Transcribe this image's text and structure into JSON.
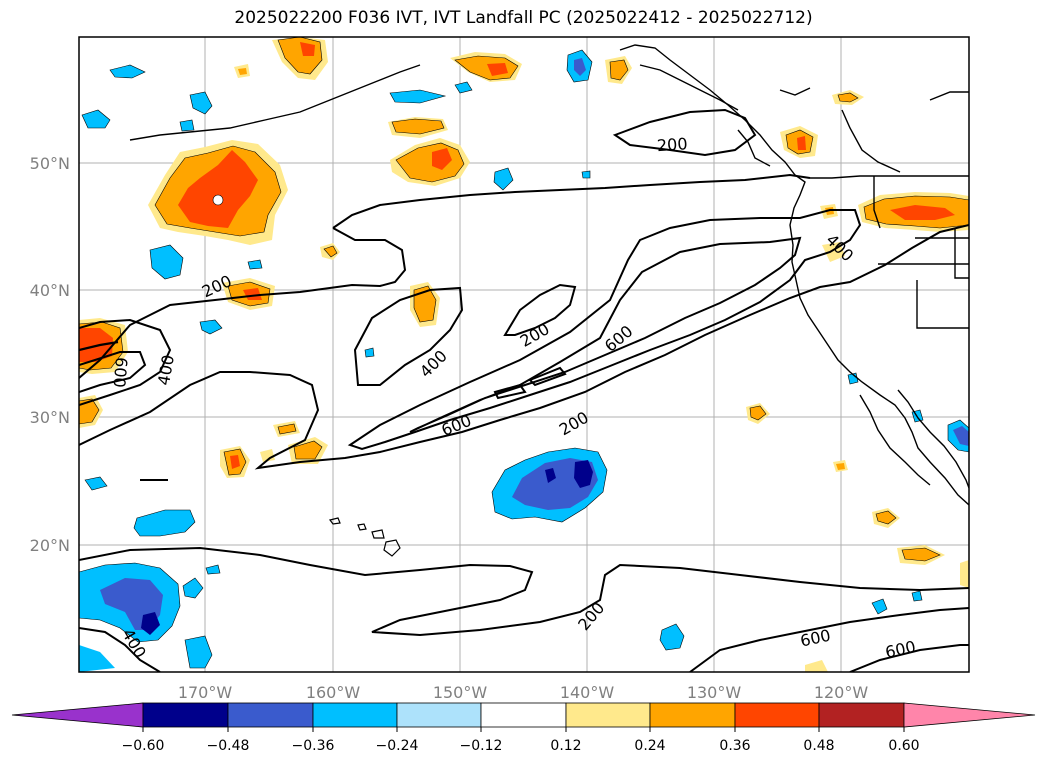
{
  "title": "2025022200 F036 IVT, IVT Landfall PC (2025022412 - 2025022712)",
  "map": {
    "lon_ticks": [
      "170°W",
      "160°W",
      "150°W",
      "140°W",
      "130°W",
      "120°W"
    ],
    "lat_ticks": [
      "50°N",
      "40°N",
      "30°N",
      "20°N"
    ],
    "gridlines": true,
    "contour_labels": [
      "200",
      "200",
      "200",
      "200",
      "400",
      "400",
      "400",
      "400",
      "600",
      "600",
      "600",
      "600",
      "600",
      "200"
    ]
  },
  "colorbar": {
    "ticks": [
      "−0.60",
      "−0.48",
      "−0.36",
      "−0.24",
      "−0.12",
      "0.12",
      "0.24",
      "0.36",
      "0.48",
      "0.60"
    ],
    "colors": {
      "lt_neg_060": "#9932cc",
      "neg_060_048": "#00008b",
      "neg_048_036": "#3a5bcd",
      "neg_036_024": "#00bfff",
      "neg_024_012": "#ade2fb",
      "neutral": "#ffffff",
      "pos_012_024": "#ffe98c",
      "pos_024_036": "#ffa500",
      "pos_036_048": "#ff4500",
      "pos_048_060": "#b22222",
      "gt_060": "#ff85aa"
    }
  }
}
